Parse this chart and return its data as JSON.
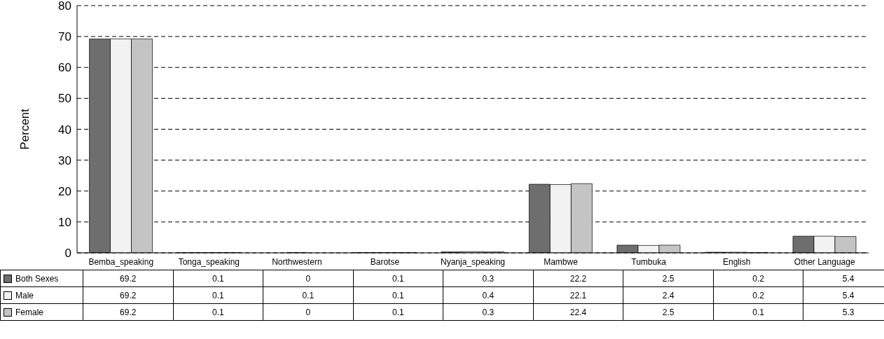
{
  "chart_data": {
    "type": "bar",
    "ylabel": "Percent",
    "categories": [
      "Bemba_speaking",
      "Tonga_speaking",
      "Northwestern",
      "Barotse",
      "Nyanja_speaking",
      "Mambwe",
      "Tumbuka",
      "English",
      "Other Language"
    ],
    "series": [
      {
        "name": "Both Sexes",
        "color": "#6e6e6e",
        "values": [
          69.2,
          0.1,
          0,
          0.1,
          0.3,
          22.2,
          2.5,
          0.2,
          5.4
        ]
      },
      {
        "name": "Male",
        "color": "#f2f2f2",
        "values": [
          69.2,
          0.1,
          0.1,
          0.1,
          0.4,
          22.1,
          2.4,
          0.2,
          5.4
        ]
      },
      {
        "name": "Female",
        "color": "#c4c4c4",
        "values": [
          69.2,
          0.1,
          0,
          0.1,
          0.3,
          22.4,
          2.5,
          0.1,
          5.3
        ]
      }
    ],
    "ylim": [
      0,
      80
    ],
    "yticks": [
      0,
      10,
      20,
      30,
      40,
      50,
      60,
      70,
      80
    ],
    "grid": "y",
    "data_labels": true,
    "legend": "left"
  }
}
